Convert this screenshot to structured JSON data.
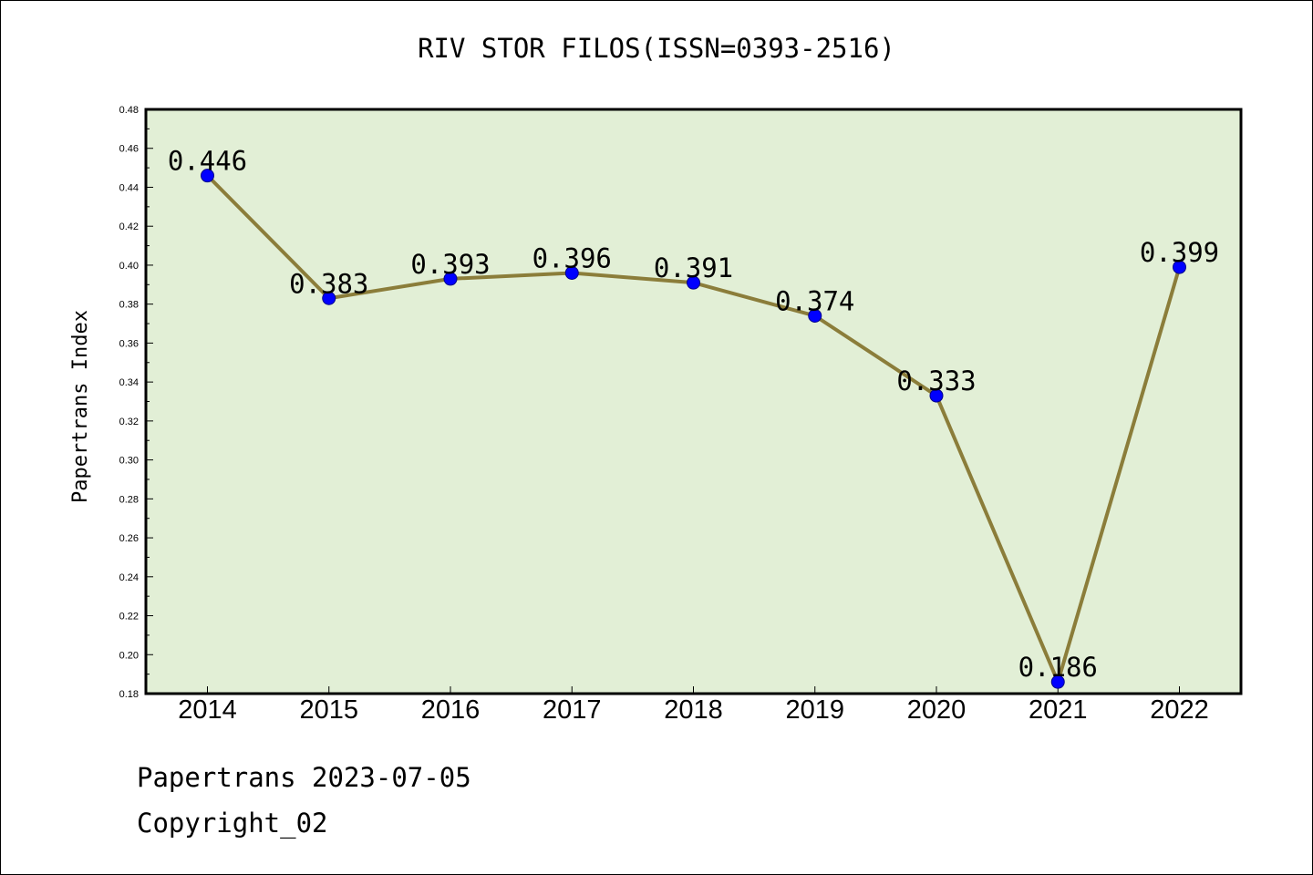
{
  "chart_data": {
    "type": "line",
    "title": "RIV STOR FILOS(ISSN=0393-2516)",
    "ylabel": "Papertrans Index",
    "xlabel": "",
    "categories": [
      "2014",
      "2015",
      "2016",
      "2017",
      "2018",
      "2019",
      "2020",
      "2021",
      "2022"
    ],
    "series": [
      {
        "values": [
          0.446,
          0.383,
          0.393,
          0.396,
          0.391,
          0.374,
          0.333,
          0.186,
          0.399
        ]
      }
    ],
    "data_labels": [
      "0.446",
      "0.383",
      "0.393",
      "0.396",
      "0.391",
      "0.374",
      "0.333",
      "0.186",
      "0.399"
    ],
    "ylim": [
      0.18,
      0.48
    ],
    "yticks": [
      "0.18",
      "0.20",
      "0.22",
      "0.24",
      "0.26",
      "0.28",
      "0.30",
      "0.32",
      "0.34",
      "0.36",
      "0.38",
      "0.40",
      "0.42",
      "0.44",
      "0.46",
      "0.48"
    ],
    "grid": false,
    "legend": "none",
    "colors": {
      "plot_bg": "#e2efd6",
      "line": "#8b7d3a",
      "marker": "#0000ff"
    }
  },
  "footer": {
    "date_line": "Papertrans 2023-07-05",
    "copyright": "Copyright_02"
  }
}
